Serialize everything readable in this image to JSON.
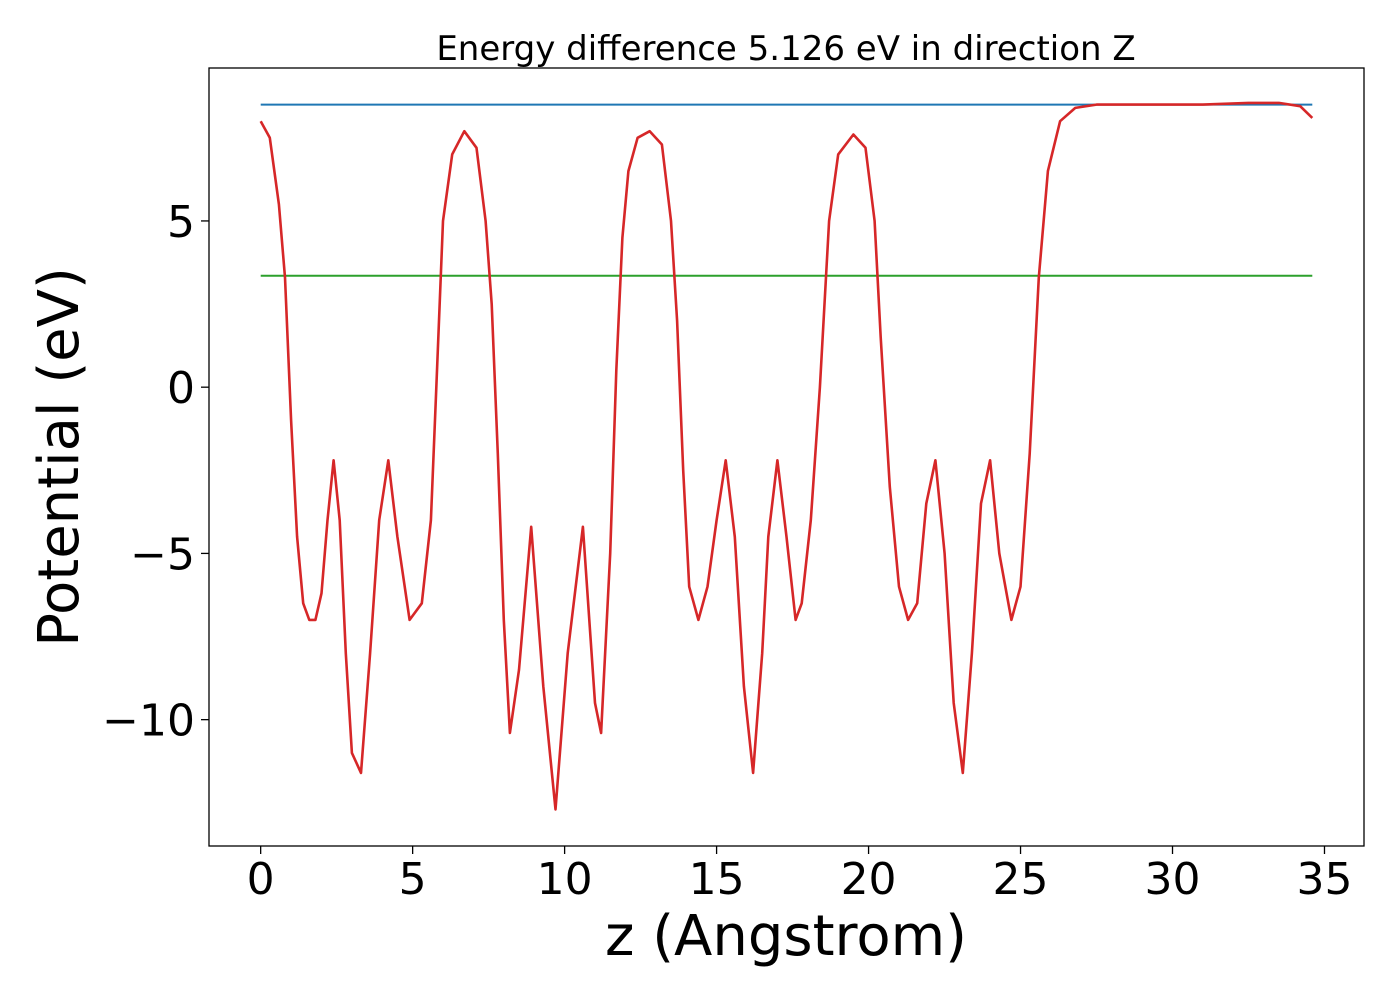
{
  "chart_data": {
    "type": "line",
    "title": "Energy difference 5.126 eV in direction Z",
    "xlabel": "z (Angstrom)",
    "ylabel": "Potential (eV)",
    "xlim": [
      -1.7,
      36.3
    ],
    "ylim": [
      -13.8,
      9.6
    ],
    "xticks": [
      0,
      5,
      10,
      15,
      20,
      25,
      30,
      35
    ],
    "yticks": [
      5,
      0,
      -5,
      -10
    ],
    "xtick_labels": [
      "0",
      "5",
      "10",
      "15",
      "20",
      "25",
      "30",
      "35"
    ],
    "ytick_labels": [
      "5",
      "0",
      "−5",
      "−10"
    ],
    "grid": false,
    "series": [
      {
        "color": "#d62728",
        "x": [
          0.0,
          0.3,
          0.6,
          0.8,
          1.0,
          1.2,
          1.4,
          1.6,
          1.8,
          2.0,
          2.2,
          2.4,
          2.6,
          2.8,
          3.0,
          3.3,
          3.6,
          3.9,
          4.2,
          4.5,
          4.9,
          5.3,
          5.6,
          5.8,
          6.0,
          6.3,
          6.7,
          7.1,
          7.4,
          7.6,
          7.8,
          8.0,
          8.2,
          8.5,
          8.9,
          9.3,
          9.7,
          10.1,
          10.6,
          11.0,
          11.2,
          11.5,
          11.7,
          11.9,
          12.1,
          12.4,
          12.8,
          13.2,
          13.5,
          13.7,
          13.9,
          14.1,
          14.4,
          14.7,
          15.0,
          15.3,
          15.6,
          15.9,
          16.2,
          16.5,
          16.7,
          17.0,
          17.3,
          17.6,
          17.8,
          18.1,
          18.4,
          18.7,
          19.0,
          19.5,
          19.9,
          20.2,
          20.4,
          20.7,
          21.0,
          21.3,
          21.6,
          21.9,
          22.2,
          22.5,
          22.8,
          23.1,
          23.4,
          23.7,
          24.0,
          24.3,
          24.7,
          25.0,
          25.3,
          25.6,
          25.9,
          26.3,
          26.8,
          27.5,
          29.0,
          31.0,
          32.5,
          33.5,
          34.2,
          34.6
        ],
        "y": [
          8.0,
          7.5,
          5.5,
          3.3,
          -1.0,
          -4.5,
          -6.5,
          -7.0,
          -7.0,
          -6.2,
          -4.0,
          -2.2,
          -4.0,
          -8.0,
          -11.0,
          -11.6,
          -8.0,
          -4.0,
          -2.2,
          -4.5,
          -7.0,
          -6.5,
          -4.0,
          0.5,
          5.0,
          7.0,
          7.7,
          7.2,
          5.0,
          2.5,
          -2.0,
          -7.0,
          -10.4,
          -8.5,
          -4.2,
          -9.0,
          -12.7,
          -8.0,
          -4.2,
          -9.5,
          -10.4,
          -5.0,
          0.5,
          4.5,
          6.5,
          7.5,
          7.7,
          7.3,
          5.0,
          2.0,
          -2.5,
          -6.0,
          -7.0,
          -6.0,
          -4.0,
          -2.2,
          -4.5,
          -9.0,
          -11.6,
          -8.0,
          -4.5,
          -2.2,
          -4.5,
          -7.0,
          -6.5,
          -4.0,
          0.0,
          5.0,
          7.0,
          7.6,
          7.2,
          5.0,
          1.5,
          -3.0,
          -6.0,
          -7.0,
          -6.5,
          -3.5,
          -2.2,
          -5.0,
          -9.5,
          -11.6,
          -8.0,
          -3.5,
          -2.2,
          -5.0,
          -7.0,
          -6.0,
          -2.0,
          3.3,
          6.5,
          8.0,
          8.4,
          8.5,
          8.5,
          8.5,
          8.55,
          8.55,
          8.45,
          8.1
        ]
      },
      {
        "color": "#1f77b4",
        "x": [
          0.0,
          34.6
        ],
        "y": [
          8.5,
          8.5
        ]
      },
      {
        "color": "#2ca02c",
        "x": [
          0.0,
          34.6
        ],
        "y": [
          3.35,
          3.35
        ]
      }
    ]
  }
}
